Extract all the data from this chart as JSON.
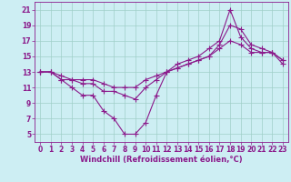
{
  "background_color": "#cdeef3",
  "grid_color": "#a0cfc8",
  "line_color": "#8b1a8b",
  "xlim": [
    -0.5,
    23.5
  ],
  "ylim": [
    4,
    22
  ],
  "xticks": [
    0,
    1,
    2,
    3,
    4,
    5,
    6,
    7,
    8,
    9,
    10,
    11,
    12,
    13,
    14,
    15,
    16,
    17,
    18,
    19,
    20,
    21,
    22,
    23
  ],
  "yticks": [
    5,
    7,
    9,
    11,
    13,
    15,
    17,
    19,
    21
  ],
  "xlabel": "Windchill (Refroidissement éolien,°C)",
  "series": [
    {
      "x": [
        0,
        1,
        2,
        3,
        4,
        5,
        6,
        7,
        8,
        9,
        10,
        11,
        12,
        13,
        14,
        15,
        16,
        17,
        18,
        19,
        20,
        21,
        22,
        23
      ],
      "y": [
        13,
        13,
        12,
        11,
        10,
        10,
        8,
        7,
        5,
        5,
        6.5,
        10,
        13,
        14,
        14.5,
        15,
        16,
        17,
        21,
        17.5,
        16,
        15.5,
        15.5,
        14
      ]
    },
    {
      "x": [
        0,
        1,
        2,
        3,
        4,
        5,
        6,
        7,
        8,
        9,
        10,
        11,
        12,
        13,
        14,
        15,
        16,
        17,
        18,
        19,
        20,
        21,
        22,
        23
      ],
      "y": [
        13,
        13,
        12,
        12,
        11.5,
        11.5,
        10.5,
        10.5,
        10,
        9.5,
        11,
        12,
        13,
        13.5,
        14,
        14.5,
        15,
        16.5,
        19,
        18.5,
        16.5,
        16,
        15.5,
        14.5
      ]
    },
    {
      "x": [
        0,
        1,
        2,
        3,
        4,
        5,
        6,
        7,
        8,
        9,
        10,
        11,
        12,
        13,
        14,
        15,
        16,
        17,
        18,
        19,
        20,
        21,
        22,
        23
      ],
      "y": [
        13,
        13,
        12.5,
        12,
        12,
        12,
        11.5,
        11,
        11,
        11,
        12,
        12.5,
        13,
        13.5,
        14,
        14.5,
        15,
        16,
        17,
        16.5,
        15.5,
        15.5,
        15.5,
        14.5
      ]
    }
  ],
  "marker": "+",
  "markersize": 4,
  "linewidth": 0.8,
  "tick_fontsize": 5.5,
  "xlabel_fontsize": 6
}
